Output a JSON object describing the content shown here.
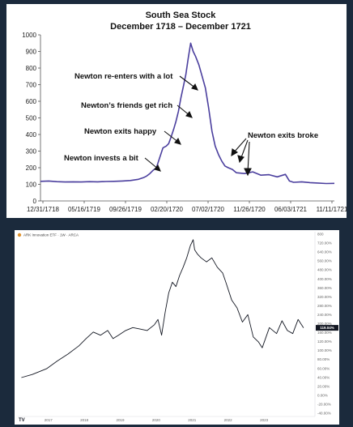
{
  "chart_data": [
    {
      "type": "line",
      "title": "South Sea Stock",
      "subtitle": "December 1718 – December 1721",
      "xlabel": "",
      "ylabel": "",
      "ylim": [
        0,
        1000
      ],
      "yticks": [
        0,
        100,
        200,
        300,
        400,
        500,
        600,
        700,
        800,
        900,
        1000
      ],
      "xtick_labels": [
        "12/31/1718",
        "05/16/1719",
        "09/26/1719",
        "02/20/1720",
        "07/02/1720",
        "11/26/1720",
        "06/03/1721",
        "11/11/1721"
      ],
      "grid": false,
      "line_color": "#4b3f9e",
      "x_range": [
        0,
        36
      ],
      "series": [
        {
          "x": [
            0,
            1,
            2,
            3,
            4,
            5,
            6,
            7,
            8,
            9,
            10,
            11,
            12,
            12.6,
            13,
            13.4,
            13.8,
            14.2,
            14.6,
            15.0,
            15.4,
            15.7,
            16.0,
            16.3,
            16.6,
            16.9,
            17.2,
            17.5,
            17.8,
            18.1,
            18.4,
            18.7,
            19.0,
            19.4,
            19.8,
            20.2,
            20.6,
            21.0,
            21.4,
            21.8,
            22.2,
            22.6,
            23.0,
            23.5,
            24,
            25,
            26,
            27,
            28,
            29,
            30,
            30.5,
            31,
            32,
            33,
            34,
            35,
            36
          ],
          "y": [
            118,
            120,
            116,
            114,
            115,
            114,
            116,
            115,
            117,
            118,
            120,
            123,
            130,
            140,
            150,
            165,
            185,
            200,
            260,
            320,
            330,
            345,
            385,
            430,
            480,
            540,
            620,
            690,
            760,
            860,
            950,
            900,
            870,
            820,
            750,
            680,
            560,
            420,
            330,
            280,
            240,
            210,
            200,
            190,
            170,
            165,
            175,
            155,
            158,
            145,
            160,
            120,
            112,
            115,
            110,
            108,
            105,
            106
          ]
        }
      ],
      "annotations": [
        {
          "text": "Newton re-enters with a lot"
        },
        {
          "text": "Newton’s friends get rich"
        },
        {
          "text": "Newton exits happy"
        },
        {
          "text": "Newton invests a bit"
        },
        {
          "text": "Newton exits broke"
        }
      ]
    },
    {
      "type": "line",
      "title": "",
      "header_text": "ARK Innovation ETF · 1W · ARCA",
      "xlabel": "",
      "ylabel": "",
      "ylim": [
        -40,
        800
      ],
      "log_scale": true,
      "ytick_labels": [
        "800",
        "720.00%",
        "640.00%",
        "560.00%",
        "480.00%",
        "400.00%",
        "360.00%",
        "320.00%",
        "280.00%",
        "240.00%",
        "200.00%",
        "160.00%",
        "120.00%",
        "100.00%",
        "80.00%",
        "60.00%",
        "40.00%",
        "20.00%",
        "0.00%",
        "-20.00%",
        "-40.00%"
      ],
      "xtick_labels": [
        "2017",
        "2018",
        "2019",
        "2020",
        "2021",
        "2022",
        "2023"
      ],
      "grid": false,
      "line_color": "#131722",
      "current_value_badge": "119.04%",
      "x_range": [
        2016.2,
        2024.4
      ],
      "series": [
        {
          "x": [
            2016.3,
            2016.6,
            2017.0,
            2017.3,
            2017.6,
            2017.9,
            2018.1,
            2018.3,
            2018.5,
            2018.7,
            2018.85,
            2019.0,
            2019.2,
            2019.4,
            2019.6,
            2019.8,
            2020.0,
            2020.1,
            2020.2,
            2020.3,
            2020.4,
            2020.5,
            2020.6,
            2020.7,
            2020.8,
            2020.9,
            2021.0,
            2021.08,
            2021.12,
            2021.2,
            2021.3,
            2021.45,
            2021.6,
            2021.75,
            2021.9,
            2022.0,
            2022.15,
            2022.3,
            2022.45,
            2022.6,
            2022.75,
            2022.9,
            2023.0,
            2023.2,
            2023.4,
            2023.55,
            2023.7,
            2023.85,
            2024.0,
            2024.15
          ],
          "y": [
            0,
            5,
            15,
            30,
            45,
            65,
            85,
            105,
            95,
            110,
            85,
            95,
            110,
            120,
            115,
            110,
            130,
            150,
            95,
            180,
            280,
            350,
            320,
            400,
            470,
            560,
            700,
            780,
            650,
            600,
            560,
            520,
            560,
            470,
            420,
            340,
            240,
            200,
            140,
            170,
            90,
            75,
            60,
            120,
            100,
            145,
            110,
            100,
            150,
            119
          ]
        }
      ]
    }
  ]
}
